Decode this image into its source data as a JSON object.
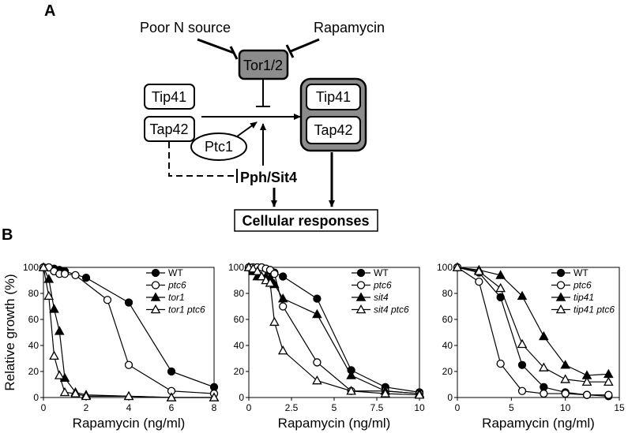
{
  "panel_a": {
    "letter": "A",
    "poor_n_source": "Poor N source",
    "rapamycin": "Rapamycin",
    "tor": "Tor1/2",
    "tip41_left": "Tip41",
    "tap42_left": "Tap42",
    "tip41_complex": "Tip41",
    "tap42_complex": "Tap42",
    "ptc1": "Ptc1",
    "pph_sit4": "Pph/Sit4",
    "cellular_responses": "Cellular responses",
    "colors": {
      "tor_fill": "#8c8c8c",
      "complex_fill": "#8c8c8c",
      "box_fill": "#ffffff"
    }
  },
  "panel_b": {
    "letter": "B"
  },
  "chart_data": [
    {
      "type": "line",
      "xlabel": "Rapamycin (ng/ml)",
      "ylabel": "Relative growth (%)",
      "xlim": [
        0,
        8
      ],
      "ylim": [
        0,
        100
      ],
      "xticks": [
        0,
        2,
        4,
        6,
        8
      ],
      "yticks": [
        0,
        20,
        40,
        60,
        80,
        100
      ],
      "legend_position": "top-right",
      "series": [
        {
          "name": "WT",
          "marker": "filled-circle",
          "italic": false,
          "x": [
            0,
            0.25,
            0.5,
            0.75,
            1,
            2,
            4,
            6,
            8
          ],
          "y": [
            100,
            100,
            99,
            98,
            97,
            92,
            73,
            20,
            8
          ]
        },
        {
          "name": "ptc6",
          "marker": "open-circle",
          "italic": true,
          "x": [
            0,
            0.25,
            0.5,
            0.75,
            1,
            1.5,
            3,
            4,
            6,
            8
          ],
          "y": [
            100,
            100,
            97,
            95,
            95,
            94,
            75,
            25,
            5,
            3
          ]
        },
        {
          "name": "tor1",
          "marker": "filled-triangle",
          "italic": true,
          "x": [
            0,
            0.25,
            0.5,
            0.75,
            1,
            1.5,
            2,
            4,
            6,
            8
          ],
          "y": [
            100,
            91,
            68,
            51,
            15,
            4,
            2,
            1,
            0,
            0
          ]
        },
        {
          "name": "tor1 ptc6",
          "marker": "open-triangle",
          "italic": true,
          "x": [
            0,
            0.25,
            0.5,
            0.75,
            1,
            1.5,
            2,
            4,
            6,
            8
          ],
          "y": [
            100,
            78,
            32,
            17,
            4,
            3,
            1,
            1,
            0,
            0
          ]
        }
      ]
    },
    {
      "type": "line",
      "xlabel": "Rapamycin (ng/ml)",
      "ylabel": "",
      "xlim": [
        0,
        10
      ],
      "ylim": [
        0,
        100
      ],
      "xticks": [
        0,
        2.5,
        5,
        7.5,
        10
      ],
      "xticklabels": [
        "0",
        "2.5",
        "5",
        "7.5",
        "10"
      ],
      "yticks": [
        0,
        20,
        40,
        60,
        80,
        100
      ],
      "legend_position": "top-right",
      "series": [
        {
          "name": "WT",
          "marker": "filled-circle",
          "italic": false,
          "x": [
            0,
            0.25,
            0.5,
            0.75,
            1,
            1.25,
            1.5,
            2,
            4,
            6,
            8,
            10
          ],
          "y": [
            100,
            100,
            100,
            100,
            99,
            97,
            96,
            93,
            76,
            21,
            8,
            4
          ]
        },
        {
          "name": "ptc6",
          "marker": "open-circle",
          "italic": true,
          "x": [
            0,
            0.25,
            0.5,
            0.75,
            1,
            1.25,
            1.5,
            2,
            4,
            6,
            8,
            10
          ],
          "y": [
            100,
            100,
            100,
            100,
            99,
            98,
            95,
            70,
            27,
            5,
            5,
            3
          ]
        },
        {
          "name": "sit4",
          "marker": "filled-triangle",
          "italic": true,
          "x": [
            0,
            0.25,
            0.5,
            0.75,
            1,
            1.25,
            1.5,
            2,
            4,
            6,
            8,
            10
          ],
          "y": [
            100,
            97,
            93,
            93,
            93,
            92,
            87,
            76,
            64,
            17,
            5,
            3
          ]
        },
        {
          "name": "sit4 ptc6",
          "marker": "open-triangle",
          "italic": true,
          "x": [
            0,
            0.25,
            0.5,
            0.75,
            1,
            1.25,
            1.5,
            2,
            4,
            6,
            8,
            10
          ],
          "y": [
            100,
            99,
            97,
            93,
            90,
            88,
            58,
            36,
            13,
            5,
            3,
            2
          ]
        }
      ]
    },
    {
      "type": "line",
      "xlabel": "Rapamycin (ng/ml)",
      "ylabel": "",
      "xlim": [
        0,
        15
      ],
      "ylim": [
        0,
        100
      ],
      "xticks": [
        0,
        5,
        10,
        15
      ],
      "yticks": [
        0,
        20,
        40,
        60,
        80,
        100
      ],
      "legend_position": "top-right",
      "series": [
        {
          "name": "WT",
          "marker": "filled-circle",
          "italic": false,
          "x": [
            0,
            2,
            4,
            6,
            8,
            10,
            12,
            14
          ],
          "y": [
            100,
            96,
            77,
            25,
            8,
            4,
            2,
            1
          ]
        },
        {
          "name": "ptc6",
          "marker": "open-circle",
          "italic": true,
          "x": [
            0,
            2,
            4,
            6,
            8,
            10,
            12,
            14
          ],
          "y": [
            100,
            89,
            26,
            5,
            3,
            3,
            2,
            2
          ]
        },
        {
          "name": "tip41",
          "marker": "filled-triangle",
          "italic": true,
          "x": [
            0,
            2,
            4,
            6,
            8,
            10,
            12,
            14
          ],
          "y": [
            100,
            98,
            94,
            78,
            47,
            25,
            17,
            18
          ]
        },
        {
          "name": "tip41 ptc6",
          "marker": "open-triangle",
          "italic": true,
          "x": [
            0,
            2,
            4,
            6,
            8,
            10,
            12,
            14
          ],
          "y": [
            100,
            97,
            84,
            41,
            23,
            14,
            12,
            12
          ]
        }
      ]
    }
  ]
}
